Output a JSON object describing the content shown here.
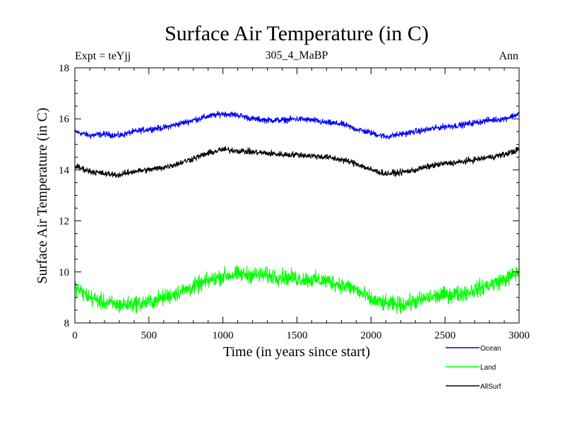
{
  "chart_data": {
    "type": "line",
    "title": "Surface Air Temperature (in C)",
    "subtitle": "305_4_MaBP",
    "expt_label": "Expt = teYjj",
    "period_label": "Ann",
    "xlabel": "Time (in years since start)",
    "ylabel": "Surface Air Temperature (in C)",
    "xlim": [
      0,
      3000
    ],
    "ylim": [
      8,
      18
    ],
    "x_ticks": [
      0,
      500,
      1000,
      1500,
      2000,
      2500,
      3000
    ],
    "x_tick_labels": [
      "0",
      "500",
      "1000",
      "1500",
      "2000",
      "2500",
      "3000"
    ],
    "y_ticks": [
      8,
      10,
      12,
      14,
      16,
      18
    ],
    "y_tick_labels": [
      "8",
      "10",
      "12",
      "14",
      "16",
      "18"
    ],
    "legend_position": "below-right",
    "series": [
      {
        "name": "Ocean",
        "color": "#0000ff",
        "noise": 0.06,
        "x": [
          0,
          100,
          200,
          300,
          400,
          500,
          600,
          700,
          800,
          900,
          1000,
          1100,
          1200,
          1300,
          1400,
          1500,
          1600,
          1700,
          1800,
          1900,
          2000,
          2100,
          2200,
          2300,
          2400,
          2500,
          2600,
          2700,
          2800,
          2900,
          3000
        ],
        "values": [
          15.5,
          15.35,
          15.4,
          15.35,
          15.5,
          15.6,
          15.65,
          15.8,
          15.95,
          16.1,
          16.2,
          16.15,
          16.0,
          15.95,
          15.95,
          16.0,
          15.95,
          15.85,
          15.8,
          15.6,
          15.45,
          15.3,
          15.4,
          15.5,
          15.6,
          15.7,
          15.75,
          15.85,
          15.95,
          16.0,
          16.2
        ]
      },
      {
        "name": "Land",
        "color": "#00ff00",
        "noise": 0.16,
        "x": [
          0,
          100,
          200,
          300,
          400,
          500,
          600,
          700,
          800,
          900,
          1000,
          1100,
          1200,
          1300,
          1400,
          1500,
          1600,
          1700,
          1800,
          1900,
          2000,
          2100,
          2200,
          2300,
          2400,
          2500,
          2600,
          2700,
          2800,
          2900,
          3000
        ],
        "values": [
          9.4,
          9.0,
          8.8,
          8.7,
          8.75,
          8.8,
          9.0,
          9.2,
          9.4,
          9.65,
          9.85,
          9.9,
          9.9,
          9.85,
          9.8,
          9.75,
          9.7,
          9.65,
          9.5,
          9.3,
          8.9,
          8.75,
          8.7,
          8.85,
          9.0,
          9.1,
          9.15,
          9.3,
          9.5,
          9.7,
          10.0
        ]
      },
      {
        "name": "AllSurf",
        "color": "#000000",
        "noise": 0.06,
        "x": [
          0,
          100,
          200,
          300,
          400,
          500,
          600,
          700,
          800,
          900,
          1000,
          1100,
          1200,
          1300,
          1400,
          1500,
          1600,
          1700,
          1800,
          1900,
          2000,
          2100,
          2200,
          2300,
          2400,
          2500,
          2600,
          2700,
          2800,
          2900,
          3000
        ],
        "values": [
          14.15,
          13.95,
          13.85,
          13.8,
          13.95,
          14.0,
          14.1,
          14.25,
          14.45,
          14.65,
          14.8,
          14.75,
          14.7,
          14.65,
          14.6,
          14.6,
          14.55,
          14.5,
          14.4,
          14.25,
          14.0,
          13.85,
          13.9,
          14.0,
          14.15,
          14.25,
          14.3,
          14.4,
          14.5,
          14.6,
          14.8
        ]
      }
    ]
  }
}
